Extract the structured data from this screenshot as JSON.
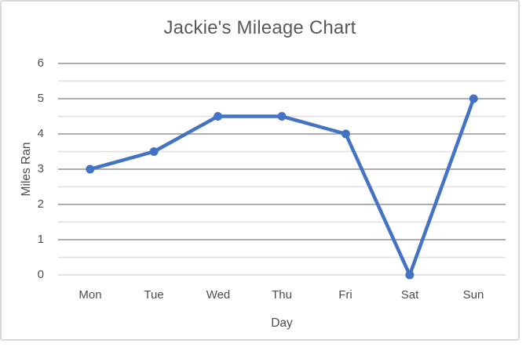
{
  "chart_data": {
    "type": "line",
    "title": "Jackie's Mileage Chart",
    "xlabel": "Day",
    "ylabel": "Miles Ran",
    "categories": [
      "Mon",
      "Tue",
      "Wed",
      "Thu",
      "Fri",
      "Sat",
      "Sun"
    ],
    "values": [
      3,
      3.5,
      4.5,
      4.5,
      4,
      0,
      5
    ],
    "ylim": [
      0,
      6
    ],
    "ytick_step": 1,
    "minor_grid_step": 0.5,
    "yticks": [
      "6",
      "5",
      "4",
      "3",
      "2",
      "1",
      "0"
    ],
    "grid": "major+minor horizontal",
    "legend": "none",
    "marker": "circle"
  },
  "colors": {
    "line": "#4472C4",
    "major_gridline": "#A3A3A3",
    "minor_gridline": "#E0E0E0",
    "axis_line": "#D9D9D9",
    "title_text": "#595959",
    "tick_text": "#4D4D4D",
    "frame_border": "#D9D9D9",
    "background": "#FFFFFF"
  }
}
